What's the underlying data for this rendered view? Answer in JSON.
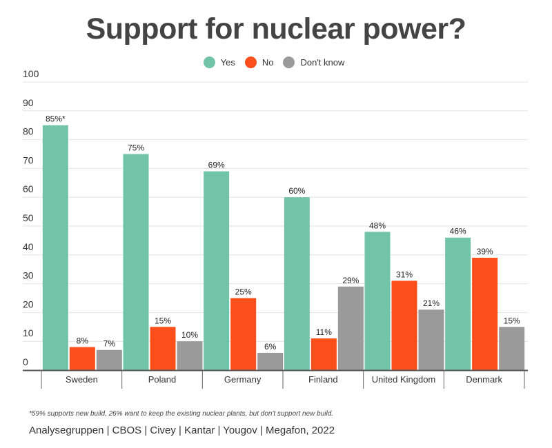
{
  "title": "Support for nuclear power?",
  "legend": [
    {
      "name": "Yes",
      "color": "#72c4a8"
    },
    {
      "name": "No",
      "color": "#fa4f1a"
    },
    {
      "name": "Don't know",
      "color": "#9a9a9a"
    }
  ],
  "footnote": "*59% supports new build, 26% want to keep the existing nuclear plants, but don't support new build.",
  "source": "Analysegruppen | CBOS | Civey | Kantar | Yougov | Megafon, 2022",
  "chart_data": {
    "type": "bar",
    "title": "Support for nuclear power?",
    "xlabel": "",
    "ylabel": "",
    "ylim": [
      0,
      100
    ],
    "yticks": [
      0,
      10,
      20,
      30,
      40,
      50,
      60,
      70,
      80,
      90,
      100
    ],
    "grid": true,
    "legend_position": "top-center",
    "categories": [
      "Sweden",
      "Poland",
      "Germany",
      "Finland",
      "United Kingdom",
      "Denmark"
    ],
    "series": [
      {
        "name": "Yes",
        "color": "#72c4a8",
        "values": [
          85,
          75,
          69,
          60,
          48,
          46
        ],
        "labels": [
          "85%*",
          "75%",
          "69%",
          "60%",
          "48%",
          "46%"
        ]
      },
      {
        "name": "No",
        "color": "#fa4f1a",
        "values": [
          8,
          15,
          25,
          11,
          31,
          39
        ],
        "labels": [
          "8%",
          "15%",
          "25%",
          "11%",
          "31%",
          "39%"
        ]
      },
      {
        "name": "Don't know",
        "color": "#9a9a9a",
        "values": [
          7,
          10,
          6,
          29,
          21,
          15
        ],
        "labels": [
          "7%",
          "10%",
          "6%",
          "29%",
          "21%",
          "15%"
        ]
      }
    ]
  }
}
